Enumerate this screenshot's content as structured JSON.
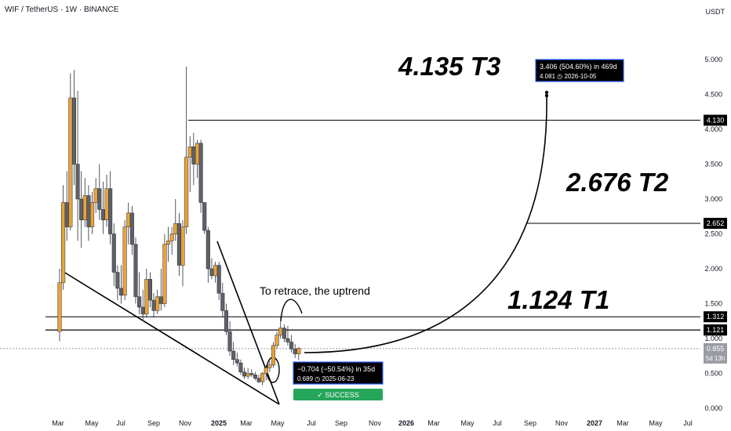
{
  "header": {
    "symbol_line": "WIF / TetherUS · 1W · BINANCE",
    "currency": "USDT"
  },
  "colors": {
    "up_candle": "#e8a33a",
    "down_candle": "#5f6168",
    "success": "#26a65b",
    "measure_box": "#000000",
    "measure_border": "#2962ff"
  },
  "chart_data": {
    "type": "candlestick",
    "title": "",
    "ylim": [
      0,
      5
    ],
    "y_ticks": [
      "0.000",
      "0.500",
      "1.000",
      "1.500",
      "2.000",
      "2.500",
      "3.000",
      "3.500",
      "4.000",
      "4.500",
      "5.000"
    ],
    "x_ticks": [
      "Mar",
      "May",
      "Jul",
      "Sep",
      "Nov",
      "2025",
      "Mar",
      "May",
      "Jul",
      "Sep",
      "Nov",
      "2026",
      "Mar",
      "May",
      "Jul",
      "Sep",
      "Nov",
      "2027",
      "Mar",
      "May",
      "Jul"
    ],
    "x_range": [
      "2024-02-19",
      "2027-07-20"
    ],
    "candles": [
      {
        "date": "2024-03-04",
        "o": 1.1,
        "h": 2.0,
        "l": 0.96,
        "c": 1.8
      },
      {
        "date": "2024-03-11",
        "o": 1.8,
        "h": 3.2,
        "l": 1.7,
        "c": 2.95
      },
      {
        "date": "2024-03-18",
        "o": 2.95,
        "h": 3.4,
        "l": 2.4,
        "c": 2.6
      },
      {
        "date": "2024-03-25",
        "o": 2.6,
        "h": 4.8,
        "l": 2.55,
        "c": 4.45
      },
      {
        "date": "2024-04-01",
        "o": 4.45,
        "h": 4.85,
        "l": 3.2,
        "c": 3.5
      },
      {
        "date": "2024-04-08",
        "o": 3.5,
        "h": 4.55,
        "l": 2.4,
        "c": 3.0
      },
      {
        "date": "2024-04-15",
        "o": 3.0,
        "h": 3.4,
        "l": 2.3,
        "c": 2.7
      },
      {
        "date": "2024-04-22",
        "o": 2.7,
        "h": 3.3,
        "l": 2.6,
        "c": 3.05
      },
      {
        "date": "2024-04-29",
        "o": 3.05,
        "h": 3.2,
        "l": 2.4,
        "c": 2.6
      },
      {
        "date": "2024-05-06",
        "o": 2.6,
        "h": 3.1,
        "l": 2.5,
        "c": 2.95
      },
      {
        "date": "2024-05-13",
        "o": 2.95,
        "h": 3.3,
        "l": 2.8,
        "c": 3.15
      },
      {
        "date": "2024-05-20",
        "o": 3.15,
        "h": 3.5,
        "l": 2.7,
        "c": 2.85
      },
      {
        "date": "2024-05-27",
        "o": 2.85,
        "h": 3.25,
        "l": 2.5,
        "c": 2.7
      },
      {
        "date": "2024-06-03",
        "o": 2.7,
        "h": 3.35,
        "l": 2.6,
        "c": 3.15
      },
      {
        "date": "2024-06-10",
        "o": 3.15,
        "h": 3.4,
        "l": 2.35,
        "c": 2.5
      },
      {
        "date": "2024-06-17",
        "o": 2.5,
        "h": 2.65,
        "l": 1.75,
        "c": 1.95
      },
      {
        "date": "2024-06-24",
        "o": 1.95,
        "h": 2.05,
        "l": 1.55,
        "c": 1.72
      },
      {
        "date": "2024-07-01",
        "o": 1.72,
        "h": 2.05,
        "l": 1.5,
        "c": 1.62
      },
      {
        "date": "2024-07-08",
        "o": 1.62,
        "h": 2.7,
        "l": 1.55,
        "c": 2.6
      },
      {
        "date": "2024-07-15",
        "o": 2.6,
        "h": 2.95,
        "l": 2.35,
        "c": 2.8
      },
      {
        "date": "2024-07-22",
        "o": 2.8,
        "h": 2.9,
        "l": 2.2,
        "c": 2.35
      },
      {
        "date": "2024-07-29",
        "o": 2.35,
        "h": 2.45,
        "l": 1.5,
        "c": 1.6
      },
      {
        "date": "2024-08-05",
        "o": 1.6,
        "h": 1.95,
        "l": 1.35,
        "c": 1.45
      },
      {
        "date": "2024-08-12",
        "o": 1.45,
        "h": 1.7,
        "l": 1.25,
        "c": 1.35
      },
      {
        "date": "2024-08-19",
        "o": 1.35,
        "h": 2.0,
        "l": 1.3,
        "c": 1.85
      },
      {
        "date": "2024-08-26",
        "o": 1.85,
        "h": 1.95,
        "l": 1.45,
        "c": 1.55
      },
      {
        "date": "2024-09-02",
        "o": 1.55,
        "h": 1.65,
        "l": 1.3,
        "c": 1.4
      },
      {
        "date": "2024-09-09",
        "o": 1.4,
        "h": 1.7,
        "l": 1.35,
        "c": 1.6
      },
      {
        "date": "2024-09-16",
        "o": 1.6,
        "h": 2.0,
        "l": 1.4,
        "c": 1.5
      },
      {
        "date": "2024-09-23",
        "o": 1.5,
        "h": 2.5,
        "l": 1.45,
        "c": 2.35
      },
      {
        "date": "2024-09-30",
        "o": 2.35,
        "h": 2.6,
        "l": 2.1,
        "c": 2.4
      },
      {
        "date": "2024-10-07",
        "o": 2.4,
        "h": 2.6,
        "l": 2.2,
        "c": 2.5
      },
      {
        "date": "2024-10-14",
        "o": 2.5,
        "h": 3.0,
        "l": 2.4,
        "c": 2.65
      },
      {
        "date": "2024-10-21",
        "o": 2.65,
        "h": 2.8,
        "l": 1.9,
        "c": 2.05
      },
      {
        "date": "2024-10-28",
        "o": 2.05,
        "h": 2.7,
        "l": 1.75,
        "c": 2.6
      },
      {
        "date": "2024-11-04",
        "o": 2.6,
        "h": 4.9,
        "l": 2.5,
        "c": 3.6
      },
      {
        "date": "2024-11-11",
        "o": 3.6,
        "h": 3.9,
        "l": 3.1,
        "c": 3.75
      },
      {
        "date": "2024-11-18",
        "o": 3.75,
        "h": 3.95,
        "l": 3.2,
        "c": 3.5
      },
      {
        "date": "2024-11-25",
        "o": 3.5,
        "h": 3.85,
        "l": 3.3,
        "c": 3.8
      },
      {
        "date": "2024-12-02",
        "o": 3.8,
        "h": 3.85,
        "l": 2.8,
        "c": 2.95
      },
      {
        "date": "2024-12-09",
        "o": 2.95,
        "h": 2.95,
        "l": 2.5,
        "c": 2.55
      },
      {
        "date": "2024-12-16",
        "o": 2.55,
        "h": 2.6,
        "l": 1.8,
        "c": 2.0
      },
      {
        "date": "2024-12-23",
        "o": 2.0,
        "h": 2.15,
        "l": 1.85,
        "c": 1.9
      },
      {
        "date": "2024-12-30",
        "o": 1.9,
        "h": 2.1,
        "l": 1.8,
        "c": 2.05
      },
      {
        "date": "2025-01-06",
        "o": 2.05,
        "h": 2.1,
        "l": 1.55,
        "c": 1.65
      },
      {
        "date": "2025-01-13",
        "o": 1.65,
        "h": 1.8,
        "l": 1.3,
        "c": 1.4
      },
      {
        "date": "2025-01-20",
        "o": 1.4,
        "h": 1.5,
        "l": 1.05,
        "c": 1.1
      },
      {
        "date": "2025-01-27",
        "o": 1.1,
        "h": 1.25,
        "l": 0.75,
        "c": 0.82
      },
      {
        "date": "2025-02-03",
        "o": 0.82,
        "h": 0.95,
        "l": 0.62,
        "c": 0.7
      },
      {
        "date": "2025-02-10",
        "o": 0.7,
        "h": 0.8,
        "l": 0.6,
        "c": 0.65
      },
      {
        "date": "2025-02-17",
        "o": 0.65,
        "h": 0.7,
        "l": 0.48,
        "c": 0.52
      },
      {
        "date": "2025-02-24",
        "o": 0.52,
        "h": 0.58,
        "l": 0.42,
        "c": 0.46
      },
      {
        "date": "2025-03-03",
        "o": 0.46,
        "h": 0.58,
        "l": 0.42,
        "c": 0.5
      },
      {
        "date": "2025-03-10",
        "o": 0.5,
        "h": 0.56,
        "l": 0.45,
        "c": 0.48
      },
      {
        "date": "2025-03-17",
        "o": 0.48,
        "h": 0.52,
        "l": 0.4,
        "c": 0.43
      },
      {
        "date": "2025-03-24",
        "o": 0.43,
        "h": 0.48,
        "l": 0.36,
        "c": 0.38
      },
      {
        "date": "2025-03-31",
        "o": 0.38,
        "h": 0.52,
        "l": 0.33,
        "c": 0.5
      },
      {
        "date": "2025-04-07",
        "o": 0.5,
        "h": 0.62,
        "l": 0.4,
        "c": 0.58
      },
      {
        "date": "2025-04-14",
        "o": 0.58,
        "h": 0.68,
        "l": 0.52,
        "c": 0.62
      },
      {
        "date": "2025-04-21",
        "o": 0.62,
        "h": 0.95,
        "l": 0.58,
        "c": 0.9
      },
      {
        "date": "2025-04-28",
        "o": 0.9,
        "h": 1.1,
        "l": 0.85,
        "c": 1.05
      },
      {
        "date": "2025-05-05",
        "o": 1.05,
        "h": 1.32,
        "l": 1.0,
        "c": 1.15
      },
      {
        "date": "2025-05-12",
        "o": 1.15,
        "h": 1.2,
        "l": 0.95,
        "c": 1.0
      },
      {
        "date": "2025-05-19",
        "o": 1.0,
        "h": 1.18,
        "l": 0.9,
        "c": 0.95
      },
      {
        "date": "2025-05-26",
        "o": 0.95,
        "h": 1.05,
        "l": 0.8,
        "c": 0.85
      },
      {
        "date": "2025-06-02",
        "o": 0.85,
        "h": 0.92,
        "l": 0.72,
        "c": 0.78
      },
      {
        "date": "2025-06-09",
        "o": 0.78,
        "h": 0.88,
        "l": 0.69,
        "c": 0.86
      }
    ],
    "levels": [
      {
        "value": 4.13,
        "label": "4.130"
      },
      {
        "value": 2.652,
        "label": "2.652"
      },
      {
        "value": 1.312,
        "label": "1.312"
      },
      {
        "value": 1.124,
        "label": "1.124"
      },
      {
        "value": 1.121,
        "label": "1.121"
      }
    ],
    "current_price": {
      "value": 0.855,
      "label": "0.855",
      "countdown": "5d 13h"
    },
    "targets": [
      {
        "text": "4.135 T3",
        "value": 4.135
      },
      {
        "text": "2.676 T2",
        "value": 2.676
      },
      {
        "text": "1.124 T1",
        "value": 1.124
      }
    ],
    "annotation": "To retrace, the uptrend",
    "measure_down": {
      "line1": "−0.704 (−50.54%) in 35d",
      "line2": "0.689 ◷ 2025-06-23",
      "status": "✓ SUCCESS"
    },
    "measure_up": {
      "line1": "3.406 (504.60%) in 469d",
      "line2": "4.081 ◷ 2026-10-05"
    }
  }
}
